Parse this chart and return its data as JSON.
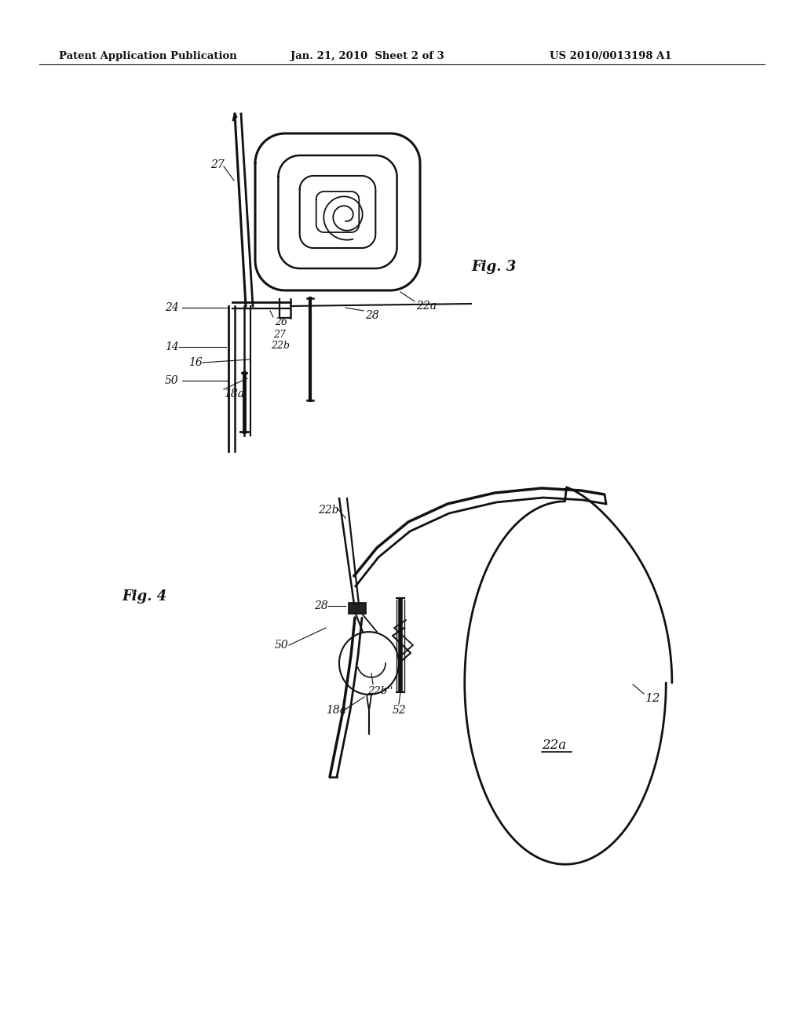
{
  "bg_color": "#ffffff",
  "header_left": "Patent Application Publication",
  "header_mid": "Jan. 21, 2010  Sheet 2 of 3",
  "header_right": "US 2010/0013198 A1",
  "fig3_label": "Fig. 3",
  "fig4_label": "Fig. 4",
  "line_color": "#111111",
  "text_color": "#111111",
  "lw": 1.6
}
